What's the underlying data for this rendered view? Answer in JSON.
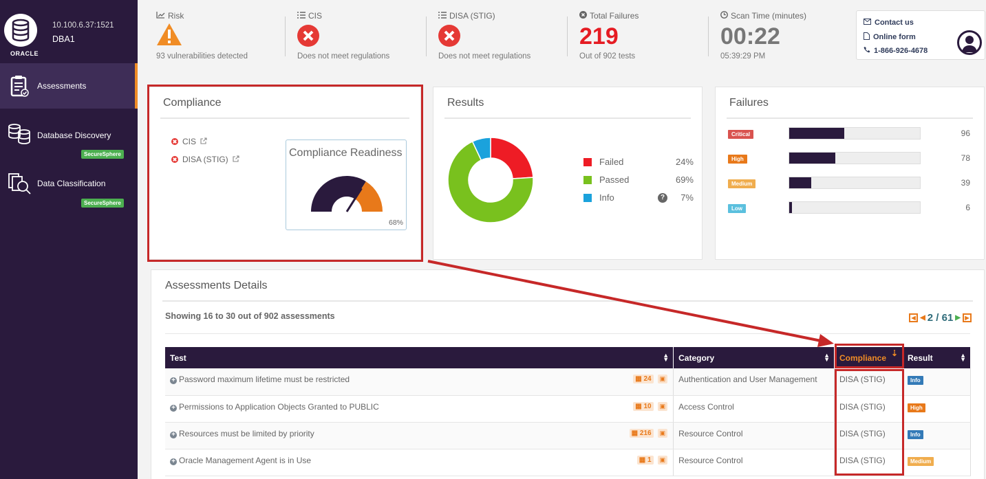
{
  "sidebar": {
    "db_host": "10.100.6.37:1521",
    "db_name": "DBA1",
    "db_vendor": "ORACLE",
    "items": [
      {
        "label": "Assessments",
        "icon": "clipboard-check-icon",
        "active": true
      },
      {
        "label": "Database Discovery",
        "icon": "database-stack-icon",
        "badge": "SecureSphere"
      },
      {
        "label": "Data Classification",
        "icon": "document-search-icon",
        "badge": "SecureSphere"
      }
    ]
  },
  "stats": {
    "risk": {
      "title": "Risk",
      "sub": "93 vulnerabilities detected",
      "icon": "warning-triangle-icon"
    },
    "cis": {
      "title": "CIS",
      "sub": "Does not meet regulations",
      "icon": "fail-circle-icon"
    },
    "disa": {
      "title": "DISA (STIG)",
      "sub": "Does not meet regulations",
      "icon": "fail-circle-icon"
    },
    "failures": {
      "title": "Total Failures",
      "value": "219",
      "sub": "Out of 902 tests"
    },
    "scan": {
      "title": "Scan Time (minutes)",
      "value": "00:22",
      "sub": "05:39:29 PM"
    }
  },
  "contact": {
    "contact_us": "Contact us",
    "online_form": "Online form",
    "phone": "1-866-926-4678"
  },
  "compliance": {
    "title": "Compliance",
    "items": [
      "CIS",
      "DISA (STIG)"
    ],
    "readiness_title": "Compliance Readiness",
    "readiness_pct": "68%",
    "readiness_value": 0.68
  },
  "results": {
    "title": "Results",
    "legend": [
      {
        "label": "Failed",
        "value": "24%",
        "color": "#ee1c25"
      },
      {
        "label": "Passed",
        "value": "69%",
        "color": "#79c11e"
      },
      {
        "label": "Info",
        "value": "7%",
        "color": "#1ba2dc"
      }
    ]
  },
  "failures": {
    "title": "Failures",
    "rows": [
      {
        "label": "Critical",
        "count": "96",
        "color": "#d9534f",
        "fill": 0.42
      },
      {
        "label": "High",
        "count": "78",
        "color": "#e8791a",
        "fill": 0.35
      },
      {
        "label": "Medium",
        "count": "39",
        "color": "#f0ad4e",
        "fill": 0.17
      },
      {
        "label": "Low",
        "count": "6",
        "color": "#5bc0de",
        "fill": 0.02
      }
    ]
  },
  "details": {
    "title": "Assessments Details",
    "showing": "Showing 16 to 30 out of 902 assessments",
    "page": "2 / 61",
    "columns": {
      "test": "Test",
      "category": "Category",
      "compliance": "Compliance",
      "result": "Result"
    },
    "rows": [
      {
        "test": "Password maximum lifetime must be restricted",
        "count": "24",
        "category": "Authentication and User Management",
        "compliance": "DISA (STIG)",
        "result": "Info",
        "result_color": "#337ab7"
      },
      {
        "test": "Permissions to Application Objects Granted to PUBLIC",
        "count": "10",
        "category": "Access Control",
        "compliance": "DISA (STIG)",
        "result": "High",
        "result_color": "#e8791a"
      },
      {
        "test": "Resources must be limited by priority",
        "count": "216",
        "category": "Resource Control",
        "compliance": "DISA (STIG)",
        "result": "Info",
        "result_color": "#337ab7"
      },
      {
        "test": "Oracle Management Agent is in Use",
        "count": "1",
        "category": "Resource Control",
        "compliance": "DISA (STIG)",
        "result": "Medium",
        "result_color": "#f0ad4e"
      }
    ]
  }
}
